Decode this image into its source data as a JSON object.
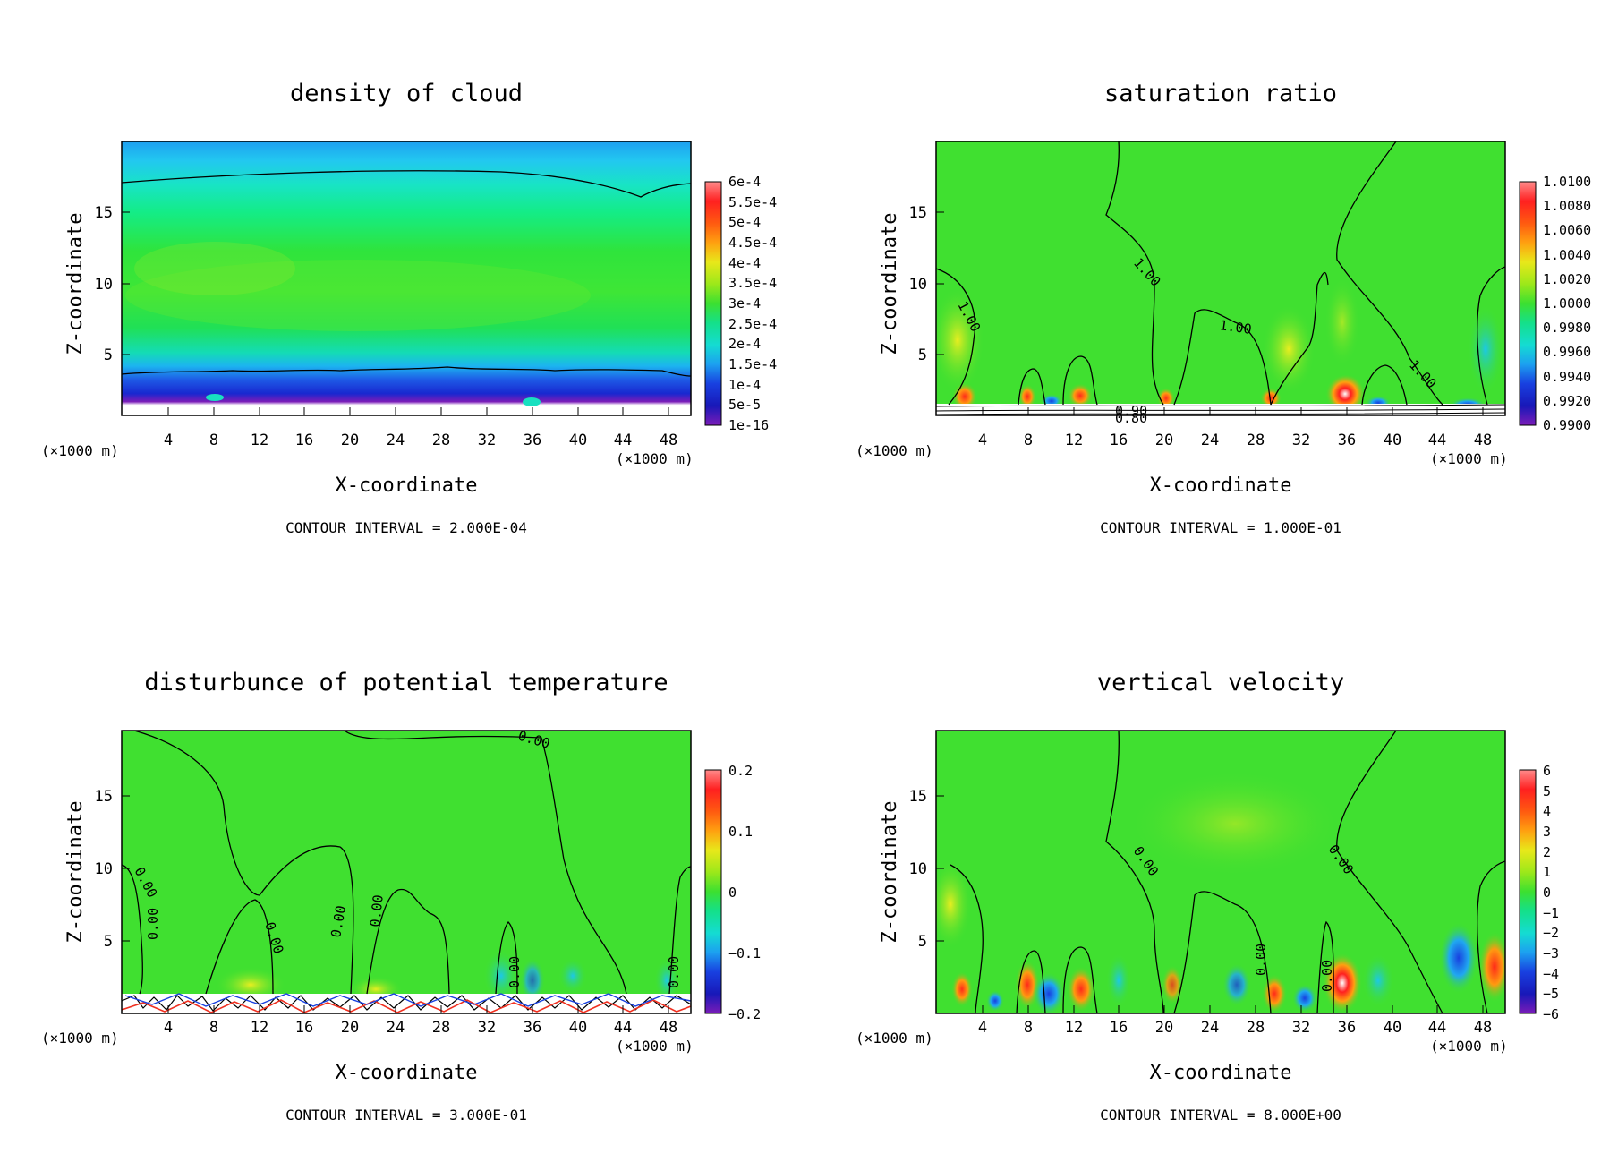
{
  "chart_data": [
    {
      "type": "heatmap",
      "title": "density of cloud",
      "xlabel": "X-coordinate",
      "ylabel": "Z-coordinate",
      "x_unit": "(×1000 m)",
      "z_unit": "(×1000 m)",
      "xlim": [
        0,
        50
      ],
      "ylim": [
        0,
        19.5
      ],
      "x_ticks": [
        "4",
        "8",
        "12",
        "16",
        "20",
        "24",
        "28",
        "32",
        "36",
        "40",
        "44",
        "48"
      ],
      "y_ticks": [
        "5",
        "10",
        "15"
      ],
      "colorbar": [
        "6e-4",
        "5.5e-4",
        "5e-4",
        "4.5e-4",
        "4e-4",
        "3.5e-4",
        "3e-4",
        "2.5e-4",
        "2e-4",
        "1.5e-4",
        "1e-4",
        "5e-5",
        "1e-16"
      ],
      "contour_interval": "CONTOUR INTERVAL = 2.000E-04",
      "contour_labels": []
    },
    {
      "type": "heatmap",
      "title": "saturation ratio",
      "xlabel": "X-coordinate",
      "ylabel": "Z-coordinate",
      "x_unit": "(×1000 m)",
      "z_unit": "(×1000 m)",
      "xlim": [
        0,
        50
      ],
      "ylim": [
        0,
        19.5
      ],
      "x_ticks": [
        "4",
        "8",
        "12",
        "16",
        "20",
        "24",
        "28",
        "32",
        "36",
        "40",
        "44",
        "48"
      ],
      "y_ticks": [
        "5",
        "10",
        "15"
      ],
      "colorbar": [
        "1.0100",
        "1.0080",
        "1.0060",
        "1.0040",
        "1.0020",
        "1.0000",
        "0.9980",
        "0.9960",
        "0.9940",
        "0.9920",
        "0.9900"
      ],
      "contour_interval": "CONTOUR INTERVAL = 1.000E-01",
      "contour_labels": [
        "1.00",
        "1.00",
        "1.00",
        "1.00",
        "0.90",
        "0.80"
      ]
    },
    {
      "type": "heatmap",
      "title": "disturbunce of potential temperature",
      "xlabel": "X-coordinate",
      "ylabel": "Z-coordinate",
      "x_unit": "(×1000 m)",
      "z_unit": "(×1000 m)",
      "xlim": [
        0,
        50
      ],
      "ylim": [
        0,
        19.5
      ],
      "x_ticks": [
        "4",
        "8",
        "12",
        "16",
        "20",
        "24",
        "28",
        "32",
        "36",
        "40",
        "44",
        "48"
      ],
      "y_ticks": [
        "5",
        "10",
        "15"
      ],
      "colorbar": [
        "0.2",
        "0.1",
        "0",
        "−0.1",
        "−0.2"
      ],
      "contour_interval": "CONTOUR INTERVAL = 3.000E-01",
      "contour_labels": [
        "0.00",
        "0.00",
        "0.00",
        "0.00",
        "0.00",
        "0.00",
        "0.00",
        "0.00"
      ]
    },
    {
      "type": "heatmap",
      "title": "vertical velocity",
      "xlabel": "X-coordinate",
      "ylabel": "Z-coordinate",
      "x_unit": "(×1000 m)",
      "z_unit": "(×1000 m)",
      "xlim": [
        0,
        50
      ],
      "ylim": [
        0,
        19.5
      ],
      "x_ticks": [
        "4",
        "8",
        "12",
        "16",
        "20",
        "24",
        "28",
        "32",
        "36",
        "40",
        "44",
        "48"
      ],
      "y_ticks": [
        "5",
        "10",
        "15"
      ],
      "colorbar": [
        "6",
        "5",
        "4",
        "3",
        "2",
        "1",
        "0",
        "−1",
        "−2",
        "−3",
        "−4",
        "−5",
        "−6"
      ],
      "contour_interval": "CONTOUR INTERVAL = 8.000E+00",
      "contour_labels": [
        "0.00",
        "0.00",
        "0.00",
        "0.00"
      ]
    }
  ]
}
